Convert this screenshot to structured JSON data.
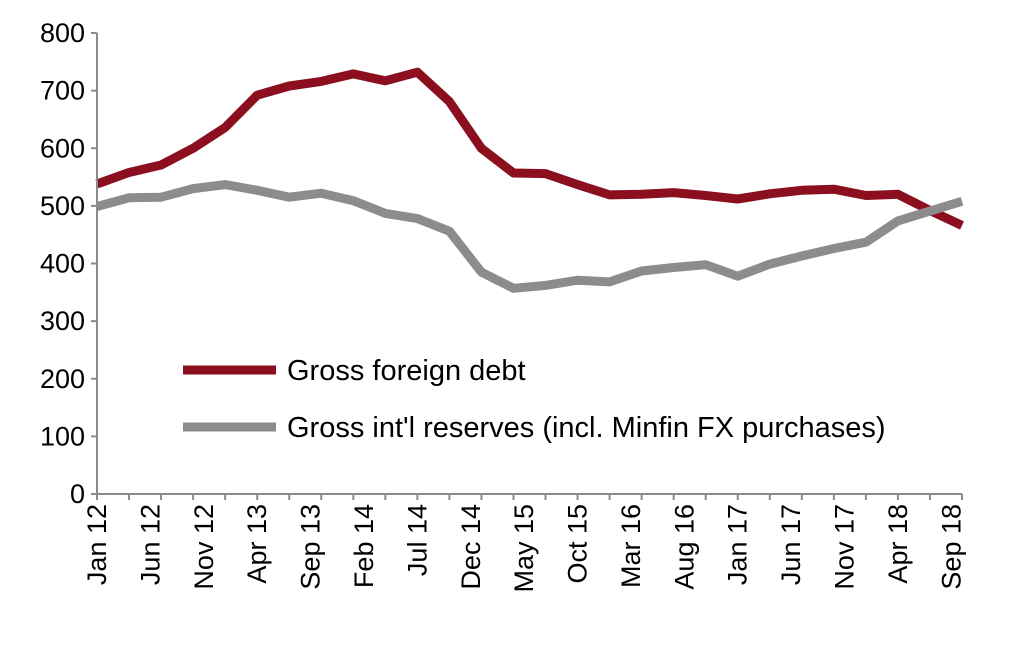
{
  "chart_data": {
    "type": "line",
    "title": "",
    "xlabel": "",
    "ylabel": "",
    "ylim": [
      0,
      800
    ],
    "yticks": [
      0,
      100,
      200,
      300,
      400,
      500,
      600,
      700,
      800
    ],
    "grid": false,
    "legend_position": "center-left",
    "x_tick_labels": [
      "Jan 12",
      "Jun 12",
      "Nov 12",
      "Apr 13",
      "Sep 13",
      "Feb 14",
      "Jul 14",
      "Dec 14",
      "May 15",
      "Oct 15",
      "Mar 16",
      "Aug 16",
      "Jan 17",
      "Jun 17",
      "Nov 17",
      "Apr 18",
      "Sep 18"
    ],
    "x": [
      0,
      3,
      6,
      9,
      12,
      15,
      18,
      21,
      24,
      27,
      30,
      33,
      36,
      39,
      42,
      45,
      48,
      51,
      54,
      57,
      60,
      63,
      66,
      69,
      72,
      75,
      78,
      81
    ],
    "series": [
      {
        "name": "Gross foreign debt",
        "color": "#8b0f1f",
        "values": [
          538,
          558,
          571,
          600,
          636,
          692,
          708,
          716,
          729,
          717,
          732,
          681,
          600,
          557,
          556,
          537,
          519,
          520,
          523,
          518,
          512,
          521,
          527,
          529,
          518,
          520,
          492,
          466
        ]
      },
      {
        "name": "Gross int'l reserves (incl. Minfin FX purchases)",
        "color": "#8c8c8c",
        "values": [
          499,
          514,
          515,
          530,
          537,
          527,
          515,
          522,
          509,
          487,
          478,
          456,
          385,
          357,
          362,
          371,
          368,
          387,
          393,
          398,
          378,
          399,
          413,
          426,
          437,
          474,
          491,
          508
        ]
      }
    ]
  }
}
